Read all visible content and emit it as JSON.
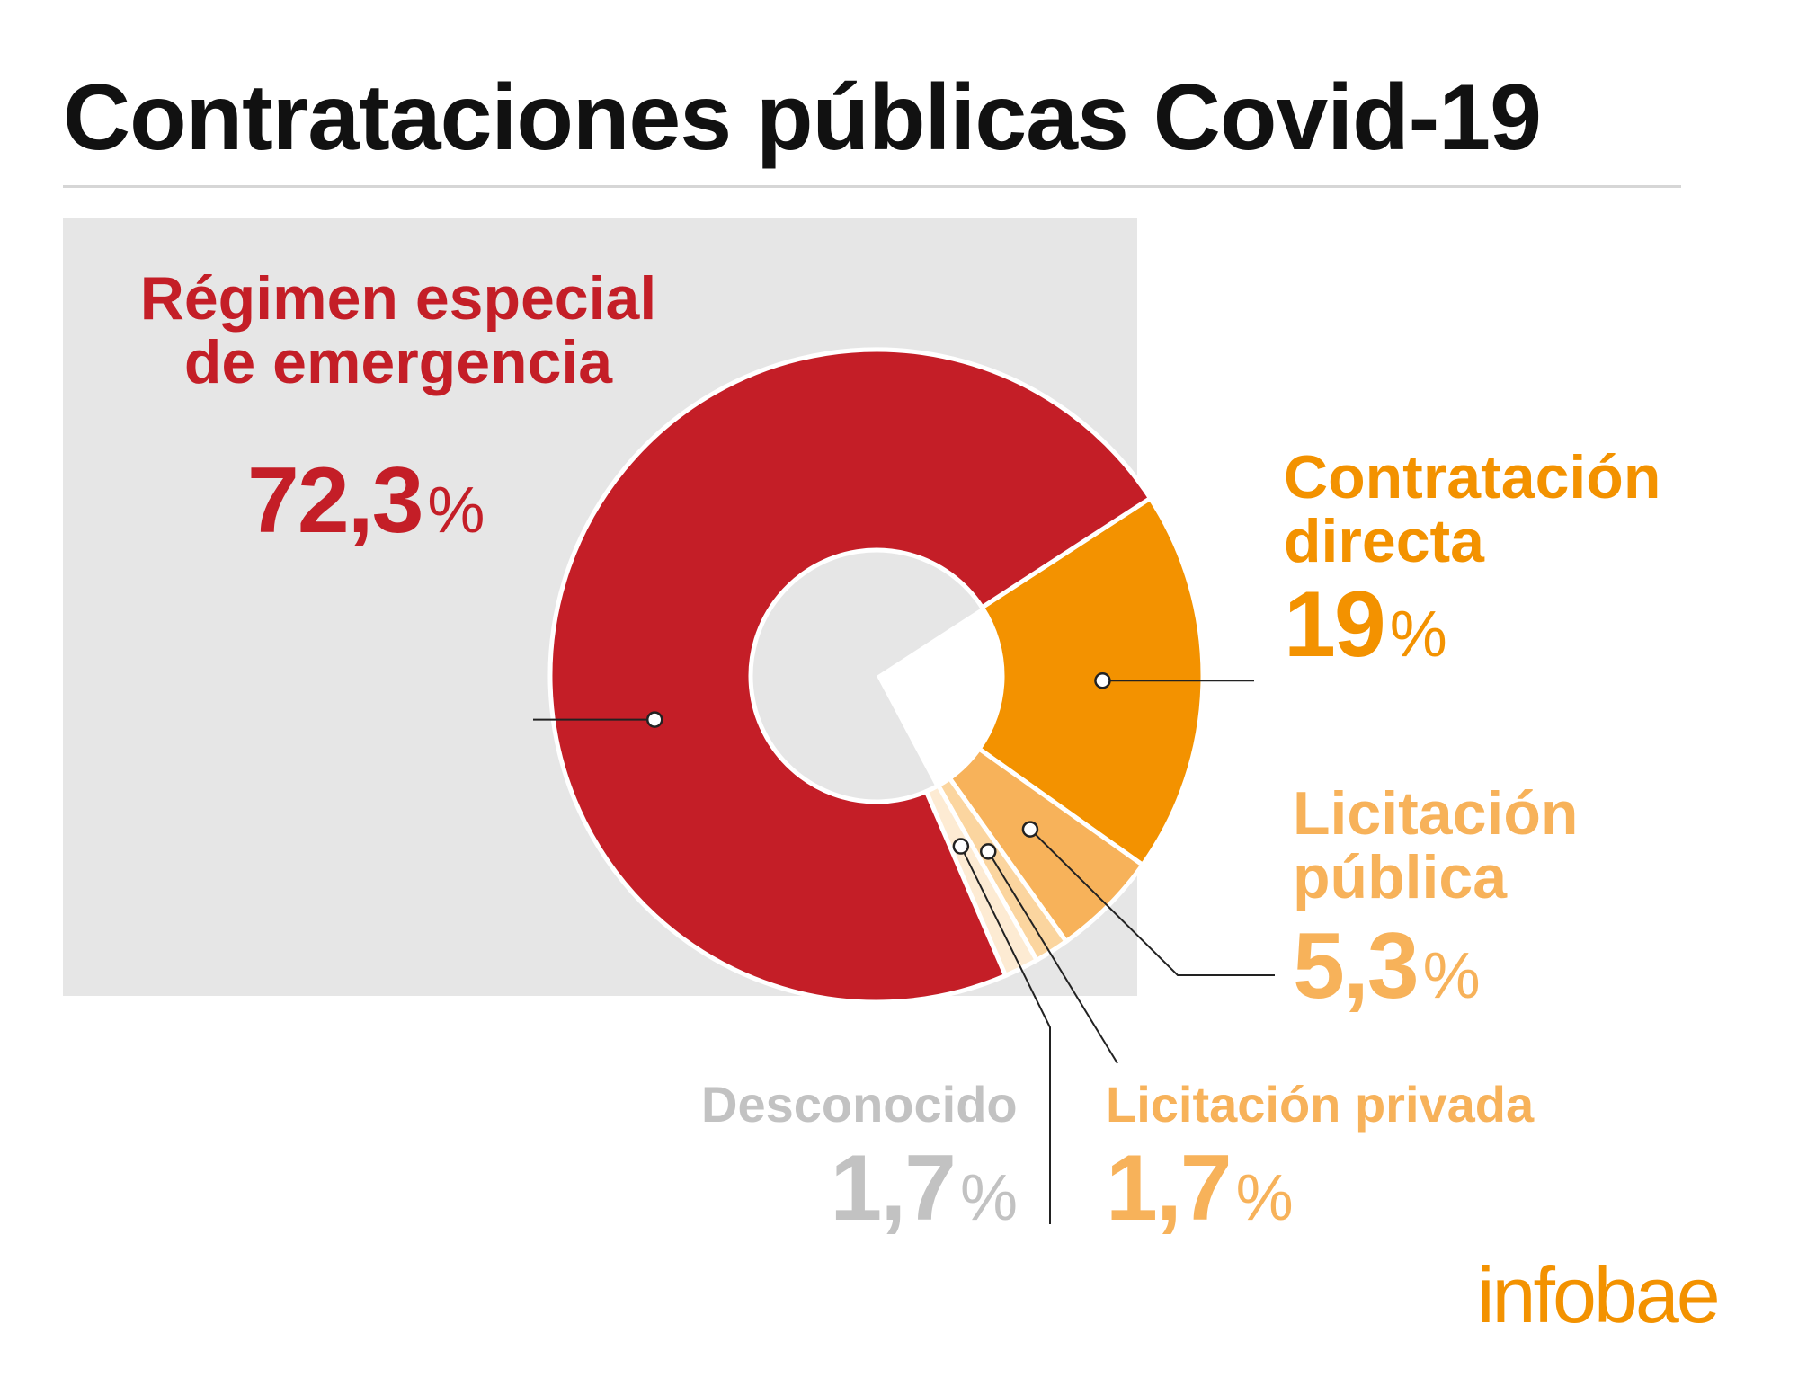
{
  "title": "Contrataciones públicas Covid-19",
  "brand": {
    "name": "infobae",
    "color": "#f39200"
  },
  "chart_data": {
    "type": "pie",
    "title": "Contrataciones públicas Covid-19",
    "donut": true,
    "slices": [
      {
        "label": "Régimen especial de emergencia",
        "label_lines": [
          "Régimen especial",
          "de emergencia"
        ],
        "value": 72.3,
        "value_text": "72,3",
        "color": "#c41e27"
      },
      {
        "label": "Contratación directa",
        "label_lines": [
          "Contratación",
          "directa"
        ],
        "value": 19,
        "value_text": "19",
        "color": "#f39200"
      },
      {
        "label": "Licitación pública",
        "label_lines": [
          "Licitación",
          "pública"
        ],
        "value": 5.3,
        "value_text": "5,3",
        "color": "#f7b25a"
      },
      {
        "label": "Licitación privada",
        "label_lines": [
          "Licitación privada"
        ],
        "value": 1.7,
        "value_text": "1,7",
        "color": "#fbd59f"
      },
      {
        "label": "Desconocido",
        "label_lines": [
          "Desconocido"
        ],
        "value": 1.7,
        "value_text": "1,7",
        "color": "#fdebd3",
        "text_color": "#c2c2c2"
      }
    ],
    "percent_symbol": "%"
  }
}
